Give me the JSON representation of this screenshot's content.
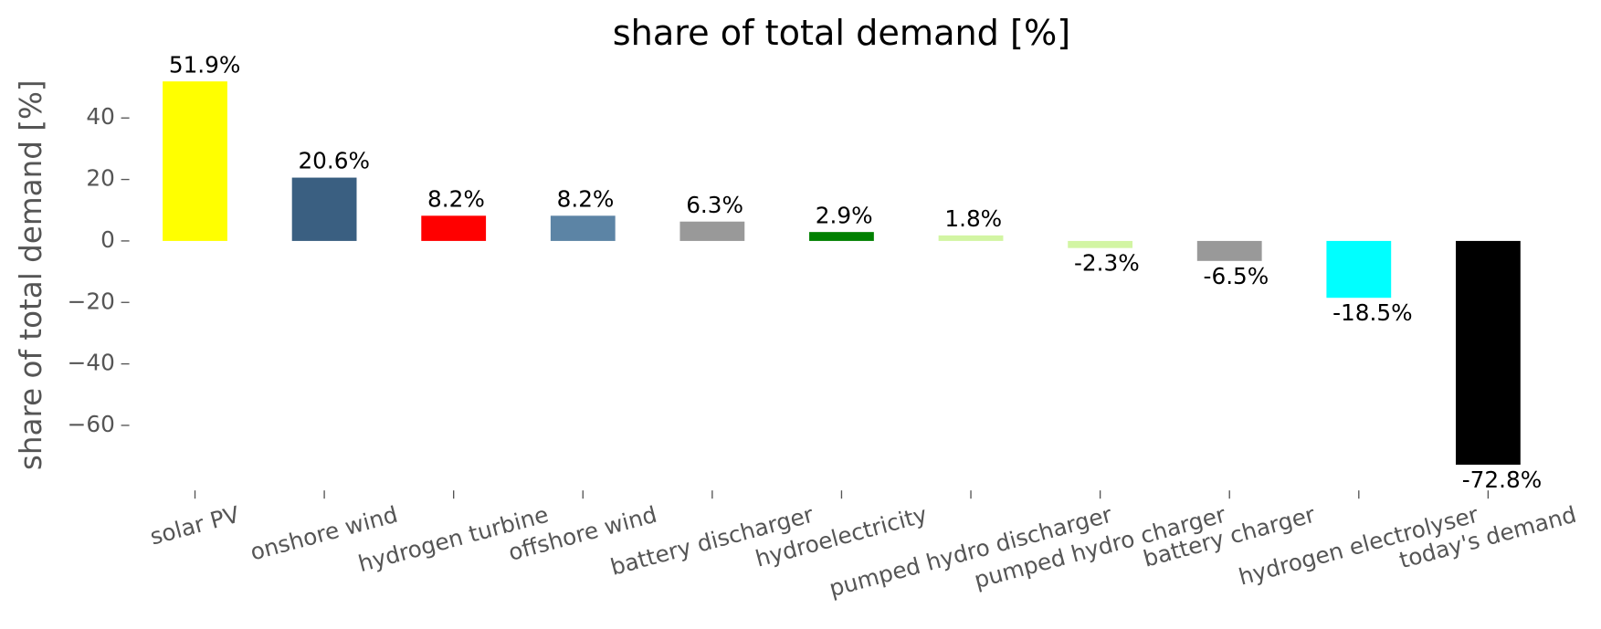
{
  "chart_data": {
    "type": "bar",
    "title": "share of total demand [%]",
    "ylabel": "share of total demand [%]",
    "categories": [
      "solar PV",
      "onshore wind",
      "hydrogen turbine",
      "offshore wind",
      "battery discharger",
      "hydroelectricity",
      "pumped hydro discharger",
      "pumped hydro charger",
      "battery charger",
      "hydrogen electrolyser",
      "today's demand"
    ],
    "values": [
      51.9,
      20.6,
      8.2,
      8.2,
      6.3,
      2.9,
      1.8,
      -2.3,
      -6.5,
      -18.5,
      -72.8
    ],
    "value_labels": [
      "51.9%",
      "20.6%",
      "8.2%",
      "8.2%",
      "6.3%",
      "2.9%",
      "1.8%",
      "-2.3%",
      "-6.5%",
      "-18.5%",
      "-72.8%"
    ],
    "colors": [
      "#ffff00",
      "#3a5f81",
      "#ff0000",
      "#5c84a5",
      "#999999",
      "#008000",
      "#d2f5a3",
      "#d2f5a3",
      "#999999",
      "#00ffff",
      "#000000"
    ],
    "ylim": [
      -78.5,
      55
    ],
    "yticks": [
      {
        "value": -60,
        "label": "−60"
      },
      {
        "value": -40,
        "label": "−40"
      },
      {
        "value": -20,
        "label": "−20"
      },
      0,
      20,
      40
    ]
  }
}
